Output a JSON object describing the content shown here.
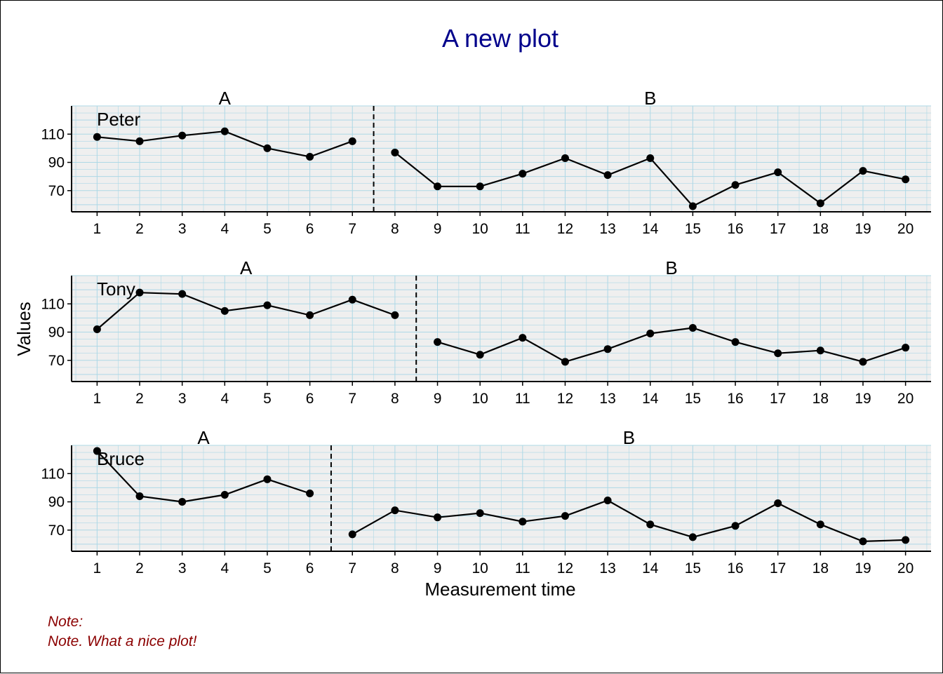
{
  "colors": {
    "title": "#00008B",
    "note": "#8B0000",
    "panel_bg": "#EFEFEF",
    "grid": "#ADD8E6",
    "line": "#000000"
  },
  "chart_data": {
    "type": "line",
    "title": "A new plot",
    "xlabel": "Measurement time",
    "ylabel": "Values",
    "notes": [
      "Note:",
      "Note. What a nice plot!"
    ],
    "x_ticks": [
      1,
      2,
      3,
      4,
      5,
      6,
      7,
      8,
      9,
      10,
      11,
      12,
      13,
      14,
      15,
      16,
      17,
      18,
      19,
      20
    ],
    "y_ticks": [
      70,
      90,
      110
    ],
    "ylim": [
      55,
      130
    ],
    "xlim": [
      0.4,
      20.6
    ],
    "grid": true,
    "phase_separator": "dashed vertical line",
    "panels": [
      {
        "case": "Peter",
        "phases": [
          {
            "name": "A",
            "x": [
              1,
              2,
              3,
              4,
              5,
              6,
              7
            ],
            "y": [
              108,
              105,
              109,
              112,
              100,
              94,
              105
            ]
          },
          {
            "name": "B",
            "x": [
              8,
              9,
              10,
              11,
              12,
              13,
              14,
              15,
              16,
              17,
              18,
              19,
              20
            ],
            "y": [
              97,
              73,
              73,
              82,
              93,
              81,
              93,
              59,
              74,
              83,
              61,
              84,
              78
            ]
          }
        ]
      },
      {
        "case": "Tony",
        "phases": [
          {
            "name": "A",
            "x": [
              1,
              2,
              3,
              4,
              5,
              6,
              7,
              8
            ],
            "y": [
              92,
              118,
              117,
              105,
              109,
              102,
              113,
              102
            ]
          },
          {
            "name": "B",
            "x": [
              9,
              10,
              11,
              12,
              13,
              14,
              15,
              16,
              17,
              18,
              19,
              20
            ],
            "y": [
              83,
              74,
              86,
              69,
              78,
              89,
              93,
              83,
              75,
              77,
              69,
              79
            ]
          }
        ]
      },
      {
        "case": "Bruce",
        "phases": [
          {
            "name": "A",
            "x": [
              1,
              2,
              3,
              4,
              5,
              6
            ],
            "y": [
              126,
              94,
              90,
              95,
              106,
              96
            ]
          },
          {
            "name": "B",
            "x": [
              7,
              8,
              9,
              10,
              11,
              12,
              13,
              14,
              15,
              16,
              17,
              18,
              19,
              20
            ],
            "y": [
              67,
              84,
              79,
              82,
              76,
              80,
              91,
              74,
              65,
              73,
              89,
              74,
              62,
              63
            ]
          }
        ]
      }
    ]
  }
}
